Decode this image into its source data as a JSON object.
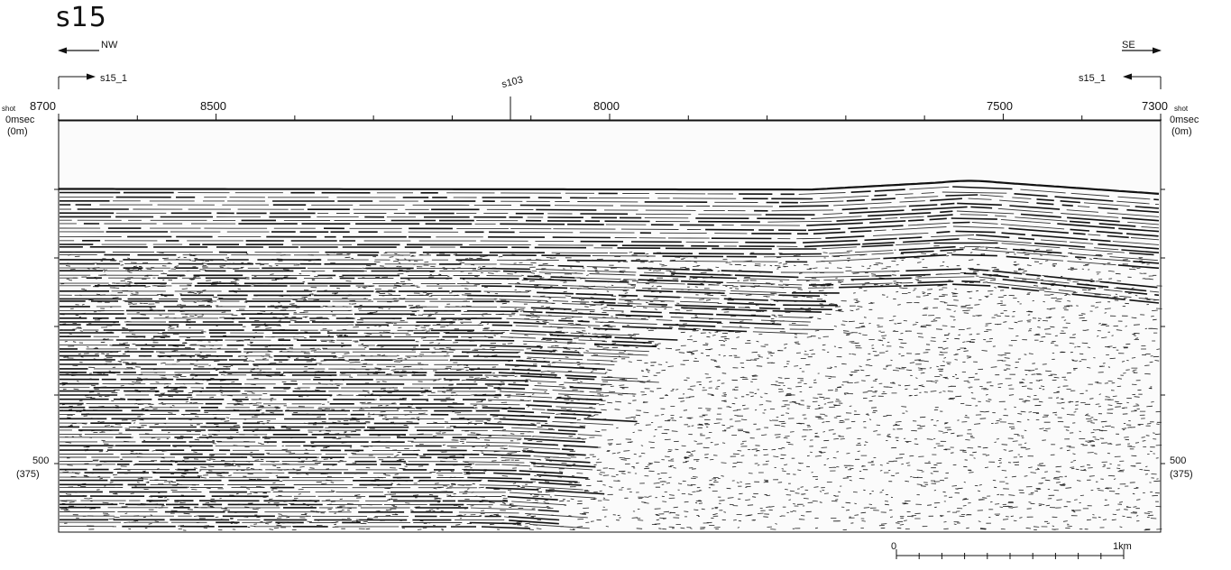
{
  "title": "s15",
  "direction_left": "NW",
  "direction_right": "SE",
  "crossing_left": "s15_1",
  "crossing_right": "s15_1",
  "crossing_mid": "s103",
  "axis": {
    "shot_label_left": "shot",
    "shot_label_right": "shot",
    "shot_ticks": [
      {
        "shot": 8700,
        "label": "8700"
      },
      {
        "shot": 8500,
        "label": "8500"
      },
      {
        "shot": 8000,
        "label": "8000"
      },
      {
        "shot": 7500,
        "label": "7500"
      },
      {
        "shot": 7300,
        "label": "7300"
      }
    ],
    "shot_start": 8700,
    "shot_end": 7300,
    "time_top": "0msec",
    "depth_top": "(0m)",
    "time_500": "500",
    "depth_500": "(375)"
  },
  "scale_bar": {
    "zero": "0",
    "end": "1km",
    "divisions": 10
  },
  "colors": {
    "ink": "#111111",
    "background": "#ffffff",
    "water": "#fbfbfb"
  }
}
